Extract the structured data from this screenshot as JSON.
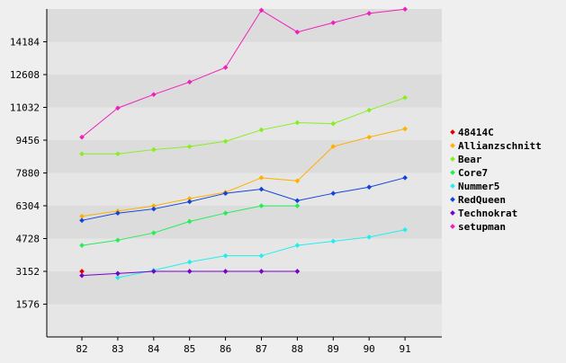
{
  "colors": {
    "background": "#efefef",
    "plot_band_dark": "#dcdcdc",
    "plot_band_light": "#e6e6e6",
    "axis": "#000000"
  },
  "chart_data": {
    "type": "line",
    "x": [
      "82",
      "83",
      "84",
      "85",
      "86",
      "87",
      "88",
      "89",
      "90",
      "91"
    ],
    "y_ticks": [
      "1576",
      "3152",
      "4728",
      "6304",
      "7880",
      "9456",
      "11032",
      "12608",
      "14184"
    ],
    "ylim": [
      0,
      15760
    ],
    "xlabel": "",
    "ylabel": "",
    "title": "",
    "grid": "horizontal alternating bands",
    "legend_position": "right",
    "series": [
      {
        "name": "48414C",
        "color": "#e00000",
        "values": [
          3152,
          null,
          null,
          null,
          null,
          null,
          null,
          null,
          null,
          null
        ]
      },
      {
        "name": "Allianzschnitt",
        "color": "#ffb000",
        "values": [
          5800,
          6050,
          6300,
          6650,
          6950,
          7650,
          7500,
          9150,
          9600,
          10000
        ]
      },
      {
        "name": "Bear",
        "color": "#88ee22",
        "values": [
          8800,
          8800,
          9000,
          9150,
          9400,
          9950,
          10300,
          10250,
          10900,
          11500
        ]
      },
      {
        "name": "Core7",
        "color": "#22ee55",
        "values": [
          4400,
          4650,
          5000,
          5550,
          5950,
          6300,
          6300,
          null,
          null,
          null
        ]
      },
      {
        "name": "Nummer5",
        "color": "#22eeee",
        "values": [
          null,
          2850,
          3200,
          3600,
          3900,
          3900,
          4400,
          4600,
          4800,
          5150
        ]
      },
      {
        "name": "RedQueen",
        "color": "#1144dd",
        "values": [
          5600,
          5950,
          6150,
          6500,
          6900,
          7100,
          6550,
          6900,
          7200,
          7650
        ]
      },
      {
        "name": "Technokrat",
        "color": "#7700cc",
        "values": [
          2950,
          3050,
          3152,
          3152,
          3152,
          3152,
          3152,
          null,
          null,
          null
        ]
      },
      {
        "name": "setupman",
        "color": "#ee22bb",
        "values": [
          9600,
          11000,
          11650,
          12250,
          12950,
          15700,
          14650,
          15100,
          15550,
          15750
        ]
      }
    ]
  }
}
